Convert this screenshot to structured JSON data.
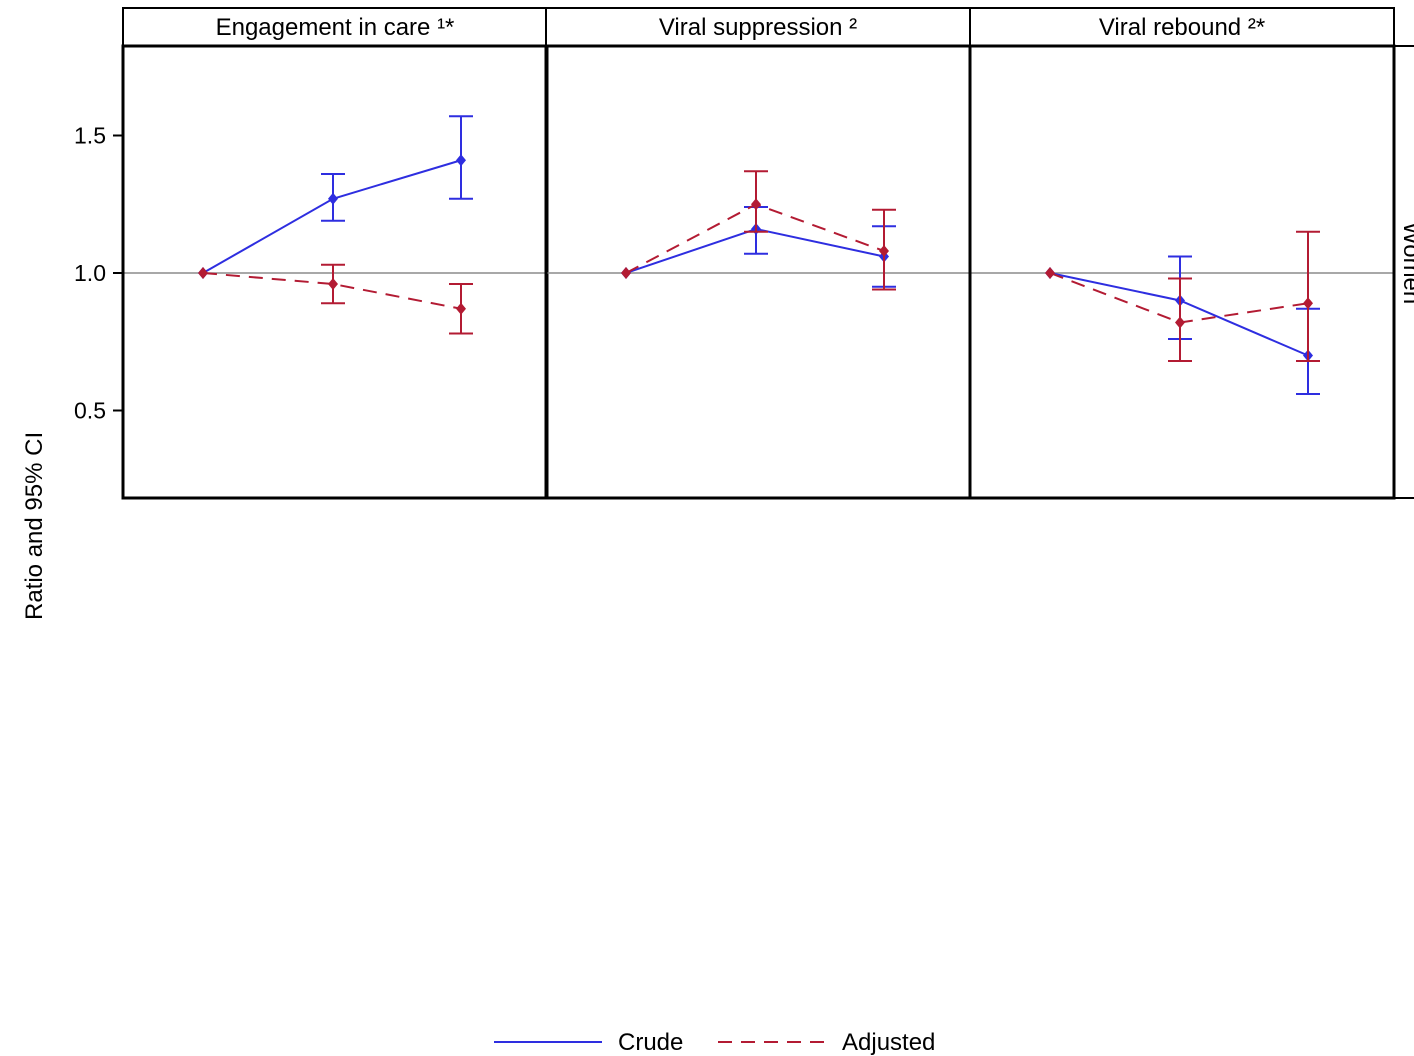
{
  "colors": {
    "crude": "#2e2ee0",
    "adjusted": "#b31b33",
    "reference_line": "#8c8c8c",
    "frame": "#000000"
  },
  "chart_data": {
    "type": "line",
    "ylabel": "Ratio and 95% CI",
    "y_ticks": [
      "1.5",
      "1.0",
      "0.5"
    ],
    "ylim": [
      0.18,
      1.82
    ],
    "reference_value": 1.0,
    "x_positions": 3,
    "panel_right_label": "Women",
    "legend": {
      "placement": "bottom-center",
      "entries": [
        {
          "name": "Crude",
          "style": "solid"
        },
        {
          "name": "Adjusted",
          "style": "dashed"
        }
      ]
    },
    "panels": [
      {
        "title": "Engagement in care ¹*",
        "series": [
          {
            "name": "Crude",
            "values": [
              1.0,
              1.27,
              1.41
            ],
            "lower": [
              null,
              1.19,
              1.27
            ],
            "upper": [
              null,
              1.36,
              1.57
            ]
          },
          {
            "name": "Adjusted",
            "values": [
              1.0,
              0.96,
              0.87
            ],
            "lower": [
              null,
              0.89,
              0.78
            ],
            "upper": [
              null,
              1.03,
              0.96
            ]
          }
        ]
      },
      {
        "title": "Viral suppression ²",
        "series": [
          {
            "name": "Crude",
            "values": [
              1.0,
              1.16,
              1.06
            ],
            "lower": [
              null,
              1.07,
              0.95
            ],
            "upper": [
              null,
              1.24,
              1.17
            ]
          },
          {
            "name": "Adjusted",
            "values": [
              1.0,
              1.25,
              1.08
            ],
            "lower": [
              null,
              1.15,
              0.94
            ],
            "upper": [
              null,
              1.37,
              1.23
            ]
          }
        ]
      },
      {
        "title": "Viral rebound ²*",
        "series": [
          {
            "name": "Crude",
            "values": [
              1.0,
              0.9,
              0.7
            ],
            "lower": [
              null,
              0.76,
              0.56
            ],
            "upper": [
              null,
              1.06,
              0.87
            ]
          },
          {
            "name": "Adjusted",
            "values": [
              1.0,
              0.82,
              0.89
            ],
            "lower": [
              null,
              0.68,
              0.68
            ],
            "upper": [
              null,
              0.98,
              1.15
            ]
          }
        ]
      }
    ]
  }
}
